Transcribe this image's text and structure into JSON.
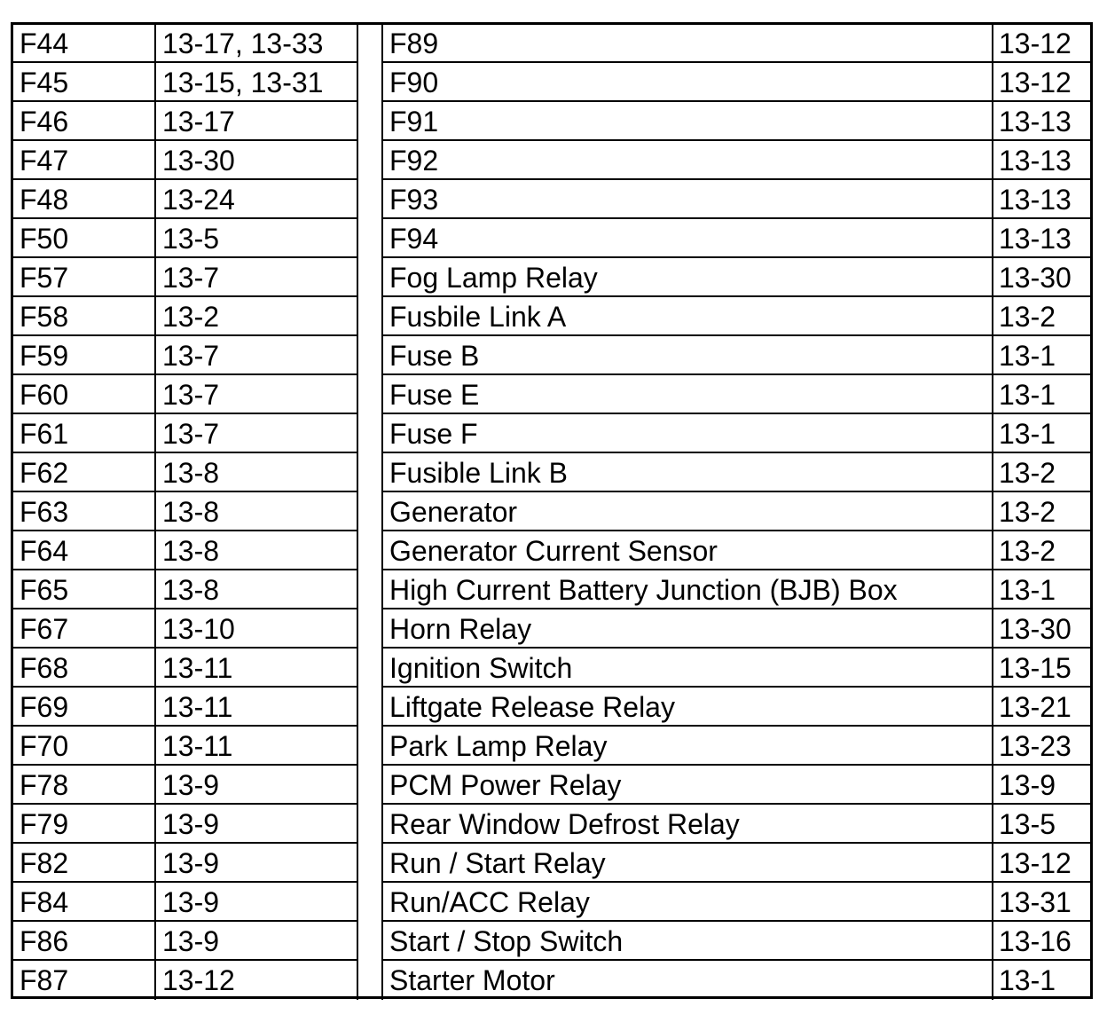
{
  "rows": [
    {
      "code": "F44",
      "code_page": "13-17, 13-33",
      "name": "F89",
      "name_page": "13-12"
    },
    {
      "code": "F45",
      "code_page": "13-15, 13-31",
      "name": "F90",
      "name_page": "13-12"
    },
    {
      "code": "F46",
      "code_page": "13-17",
      "name": "F91",
      "name_page": "13-13"
    },
    {
      "code": "F47",
      "code_page": "13-30",
      "name": "F92",
      "name_page": "13-13"
    },
    {
      "code": "F48",
      "code_page": "13-24",
      "name": "F93",
      "name_page": "13-13"
    },
    {
      "code": "F50",
      "code_page": "13-5",
      "name": "F94",
      "name_page": "13-13"
    },
    {
      "code": "F57",
      "code_page": "13-7",
      "name": "Fog Lamp Relay",
      "name_page": "13-30"
    },
    {
      "code": "F58",
      "code_page": "13-2",
      "name": "Fusbile Link A",
      "name_page": "13-2"
    },
    {
      "code": "F59",
      "code_page": "13-7",
      "name": "Fuse B",
      "name_page": "13-1"
    },
    {
      "code": "F60",
      "code_page": "13-7",
      "name": "Fuse E",
      "name_page": "13-1"
    },
    {
      "code": "F61",
      "code_page": "13-7",
      "name": "Fuse F",
      "name_page": "13-1"
    },
    {
      "code": "F62",
      "code_page": "13-8",
      "name": "Fusible Link B",
      "name_page": "13-2"
    },
    {
      "code": "F63",
      "code_page": "13-8",
      "name": "Generator",
      "name_page": "13-2"
    },
    {
      "code": "F64",
      "code_page": "13-8",
      "name": "Generator Current Sensor",
      "name_page": "13-2"
    },
    {
      "code": "F65",
      "code_page": "13-8",
      "name": "High Current Battery Junction (BJB) Box",
      "name_page": "13-1"
    },
    {
      "code": "F67",
      "code_page": "13-10",
      "name": "Horn Relay",
      "name_page": "13-30"
    },
    {
      "code": "F68",
      "code_page": "13-11",
      "name": "Ignition Switch",
      "name_page": "13-15"
    },
    {
      "code": "F69",
      "code_page": "13-11",
      "name": "Liftgate Release Relay",
      "name_page": "13-21"
    },
    {
      "code": "F70",
      "code_page": "13-11",
      "name": "Park Lamp Relay",
      "name_page": "13-23"
    },
    {
      "code": "F78",
      "code_page": "13-9",
      "name": "PCM Power Relay",
      "name_page": "13-9"
    },
    {
      "code": "F79",
      "code_page": "13-9",
      "name": "Rear Window Defrost Relay",
      "name_page": "13-5"
    },
    {
      "code": "F82",
      "code_page": "13-9",
      "name": "Run / Start Relay",
      "name_page": "13-12"
    },
    {
      "code": "F84",
      "code_page": "13-9",
      "name": "Run/ACC Relay",
      "name_page": "13-31"
    },
    {
      "code": "F86",
      "code_page": "13-9",
      "name": "Start / Stop Switch",
      "name_page": "13-16"
    },
    {
      "code": "F87",
      "code_page": "13-12",
      "name": "Starter Motor",
      "name_page": "13-1"
    }
  ]
}
